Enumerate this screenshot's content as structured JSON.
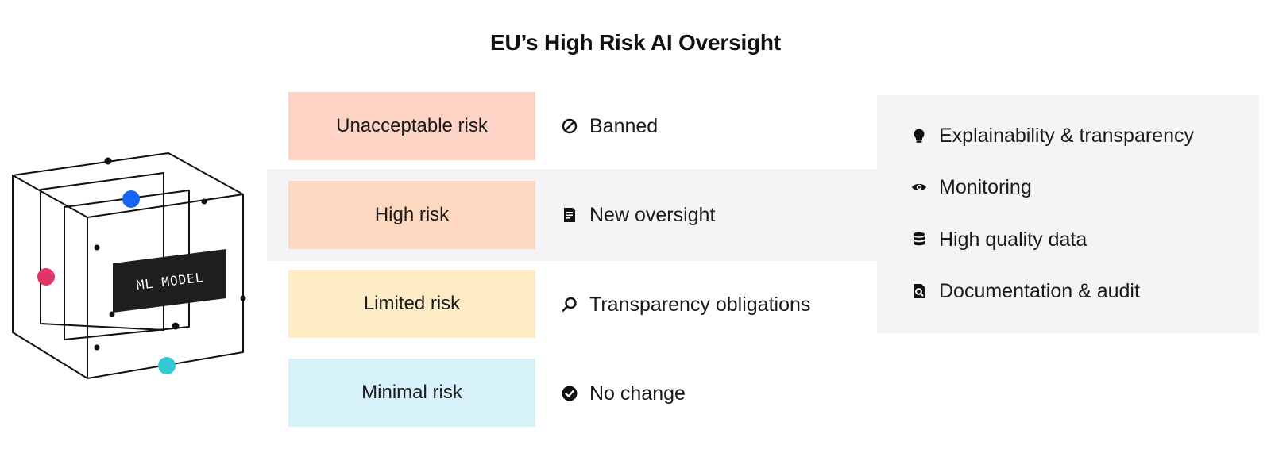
{
  "title": "EU’s High Risk AI Oversight",
  "tiers": [
    {
      "label": "Unacceptable risk",
      "color": "#fdd3c6",
      "outcome": "Banned",
      "icon": "ban-icon"
    },
    {
      "label": "High risk",
      "color": "#fdd8c0",
      "outcome": "New oversight",
      "icon": "document-icon"
    },
    {
      "label": "Limited risk",
      "color": "#fdebc6",
      "outcome": "Transparency obligations",
      "icon": "search-icon"
    },
    {
      "label": "Minimal risk",
      "color": "#d7f1f8",
      "outcome": "No change",
      "icon": "check-circle-icon"
    }
  ],
  "requirements": [
    {
      "label": "Explainability & transparency",
      "icon": "lightbulb-icon"
    },
    {
      "label": "Monitoring",
      "icon": "eye-icon"
    },
    {
      "label": "High quality data",
      "icon": "database-icon"
    },
    {
      "label": "Documentation & audit",
      "icon": "document-search-icon"
    }
  ],
  "model": {
    "label": "ML MODEL",
    "dot_colors": [
      "#1765f5",
      "#e03566",
      "#33c8d4"
    ]
  }
}
